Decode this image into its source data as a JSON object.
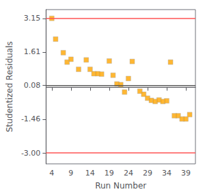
{
  "chart_data": {
    "type": "scatter",
    "x": [
      4,
      5,
      7,
      8,
      9,
      11,
      13,
      14,
      15,
      16,
      17,
      19,
      20,
      21,
      22,
      23,
      24,
      25,
      27,
      28,
      29,
      30,
      31,
      32,
      33,
      34,
      35,
      36,
      37,
      38,
      39,
      40
    ],
    "values": [
      3.15,
      2.2,
      1.58,
      1.15,
      1.28,
      0.82,
      1.25,
      0.82,
      0.62,
      0.62,
      0.6,
      1.2,
      0.55,
      0.15,
      0.12,
      -0.22,
      0.4,
      1.18,
      -0.18,
      -0.32,
      -0.5,
      -0.6,
      -0.65,
      -0.58,
      -0.65,
      -0.62,
      1.15,
      -1.3,
      -1.3,
      -1.45,
      -1.45,
      -1.25
    ],
    "color": "#FFA500",
    "marker": "square",
    "hlines": [
      {
        "y": 3.15,
        "color": "#FF5555"
      },
      {
        "y": -3.0,
        "color": "#FF5555"
      },
      {
        "y": 0.08,
        "color": "#555555"
      }
    ],
    "xlabel": "Run Number",
    "ylabel": "Studentized Residuals",
    "xlim": [
      2.5,
      41.5
    ],
    "ylim": [
      -3.5,
      3.55
    ],
    "xticks": [
      4,
      9,
      14,
      19,
      24,
      29,
      34,
      39
    ],
    "yticks": [
      3.15,
      1.61,
      0.08,
      -1.46,
      {
        "value": -3.0,
        "label": "-3.00"
      }
    ],
    "grid": false
  }
}
